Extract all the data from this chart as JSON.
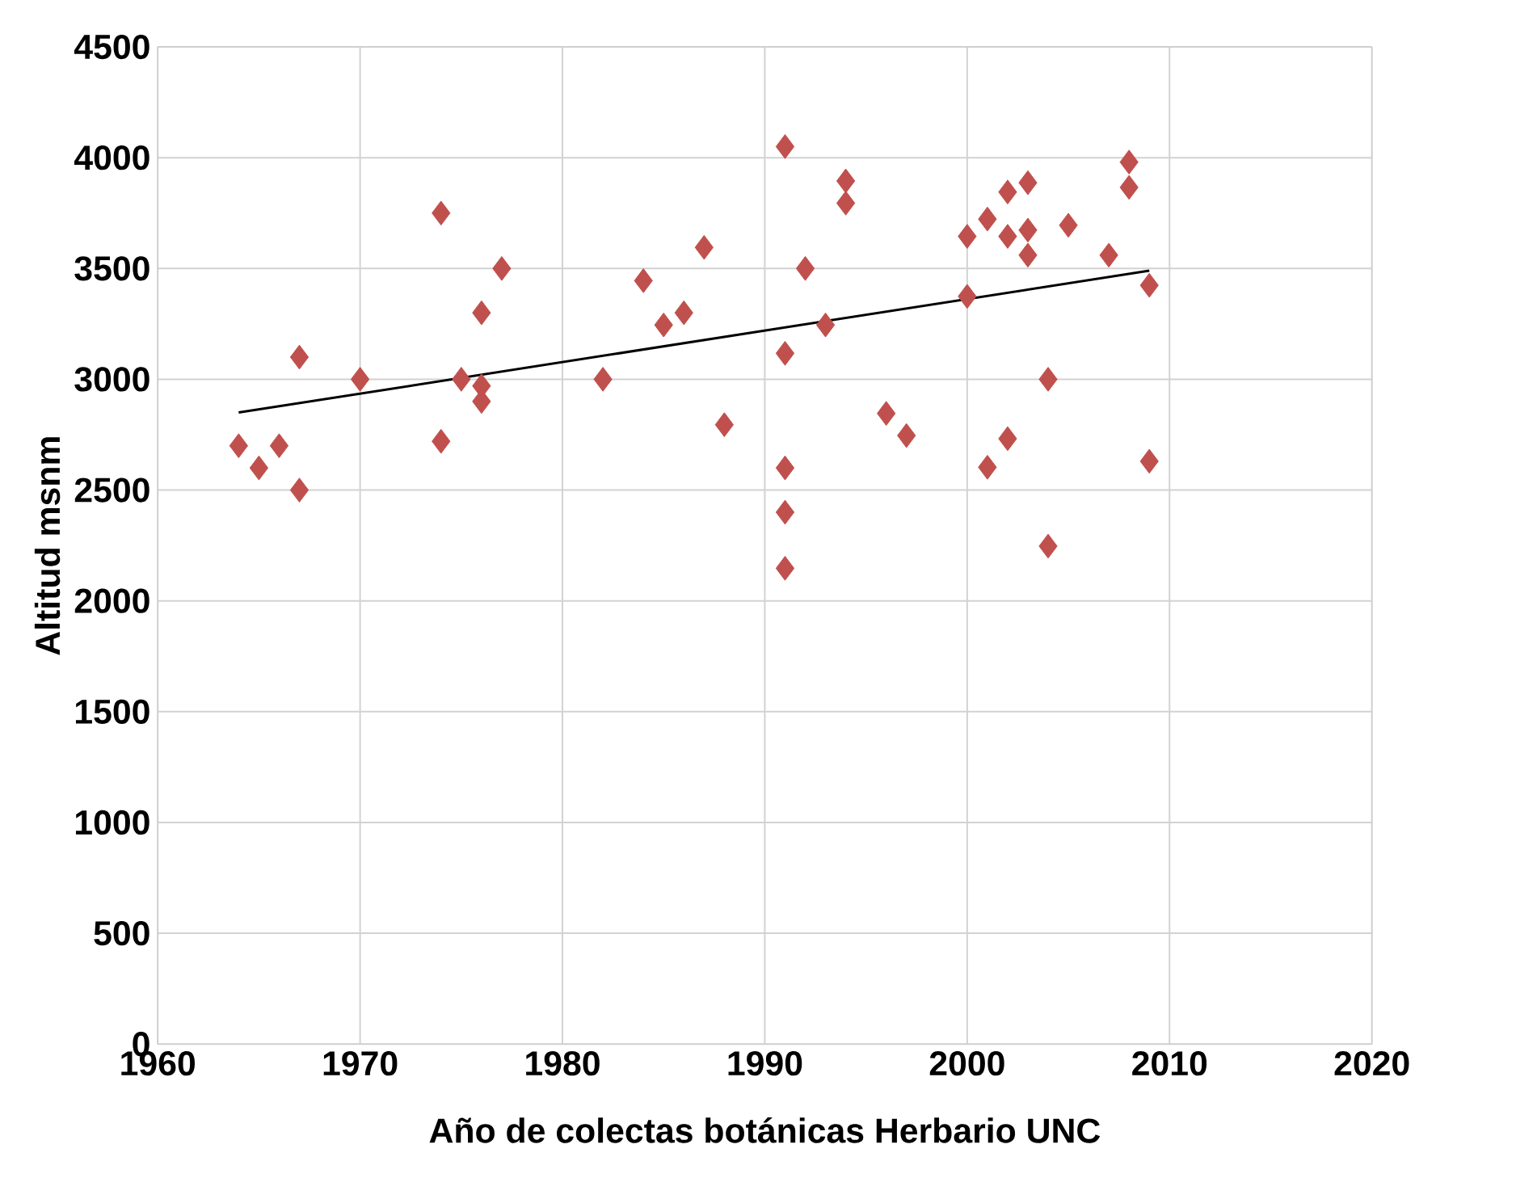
{
  "chart_data": {
    "type": "scatter",
    "xlabel": "Año de colectas botánicas Herbario UNC",
    "ylabel": "Altitud msnm",
    "xlim": [
      1960,
      2020
    ],
    "ylim": [
      0,
      4500
    ],
    "xticks": [
      1960,
      1970,
      1980,
      1990,
      2000,
      2010,
      2020
    ],
    "yticks": [
      0,
      500,
      1000,
      1500,
      2000,
      2500,
      3000,
      3500,
      4000,
      4500
    ],
    "grid": true,
    "marker": "diamond",
    "series": [
      {
        "color": "#c0504d",
        "x": [
          1964,
          1965,
          1966,
          1967,
          1967,
          1970,
          1974,
          1974,
          1975,
          1976,
          1976,
          1976,
          1977,
          1982,
          1984,
          1985,
          1986,
          1987,
          1988,
          1991,
          1991,
          1991,
          1991,
          1991,
          1992,
          1993,
          1994,
          1994,
          1996,
          1997,
          2000,
          2000,
          2001,
          2001,
          2002,
          2002,
          2002,
          2003,
          2003,
          2003,
          2004,
          2004,
          2005,
          2007,
          2008,
          2008,
          2009,
          2009
        ],
        "values": [
          2700,
          2600,
          2700,
          2500,
          3100,
          3000,
          3750,
          2720,
          3000,
          3300,
          2970,
          2900,
          3500,
          3000,
          3445,
          3245,
          3300,
          3595,
          2795,
          4050,
          3117,
          2600,
          2400,
          2147,
          3500,
          3245,
          3895,
          3795,
          2846,
          2746,
          3645,
          3374,
          2603,
          3723,
          3845,
          3645,
          2732,
          3887,
          3673,
          3560,
          3000,
          2247,
          3695,
          3560,
          3980,
          3866,
          3424,
          2630
        ]
      },
      {
        "type": "line",
        "color": "#000000",
        "marker": "none",
        "x": [
          1964,
          2009
        ],
        "values": [
          2850,
          3490
        ]
      }
    ]
  }
}
